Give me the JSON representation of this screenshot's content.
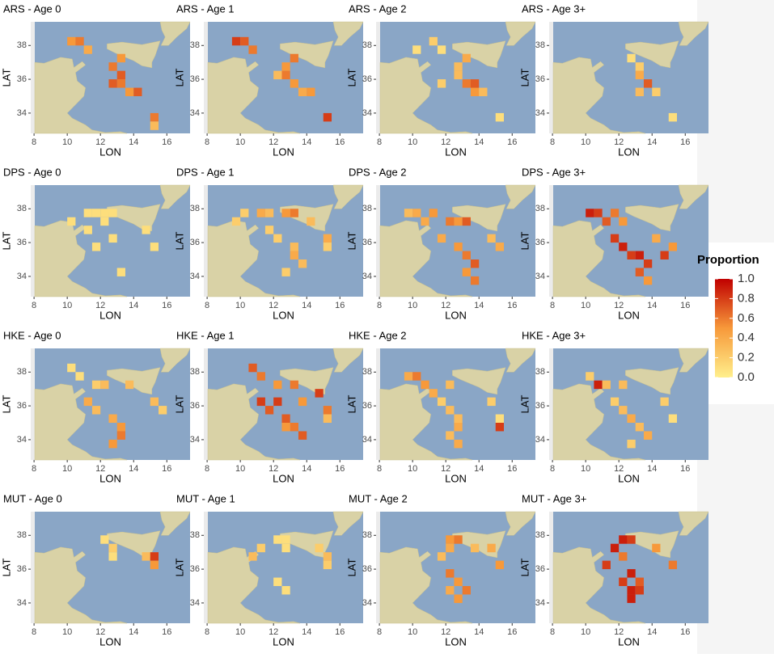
{
  "chart_data": [
    {
      "type": "heatmap",
      "title": "ARS - Age 0",
      "xlabel": "LON",
      "ylabel": "LAT",
      "xlim": [
        7.8,
        17.4
      ],
      "ylim": [
        32.8,
        39.4
      ],
      "xticks": [
        8,
        10,
        12,
        14,
        16
      ],
      "yticks": [
        34,
        36,
        38
      ],
      "x": [
        10.25,
        10.75,
        11.25,
        13.25,
        12.75,
        13.25,
        13.25,
        13.75,
        14.25,
        15.25,
        15.25,
        12.75
      ],
      "y": [
        38.25,
        38.25,
        37.75,
        37.25,
        36.75,
        36.25,
        35.75,
        35.25,
        35.25,
        33.75,
        33.25,
        35.75
      ],
      "values": [
        0.5,
        0.6,
        0.4,
        0.5,
        0.6,
        0.7,
        0.6,
        0.5,
        0.7,
        0.6,
        0.3,
        0.7
      ]
    },
    {
      "type": "heatmap",
      "title": "ARS - Age 1",
      "xlabel": "LON",
      "ylabel": "LAT",
      "xlim": [
        7.8,
        17.4
      ],
      "ylim": [
        32.8,
        39.4
      ],
      "xticks": [
        8,
        10,
        12,
        14,
        16
      ],
      "yticks": [
        34,
        36,
        38
      ],
      "x": [
        9.75,
        10.25,
        10.75,
        13.25,
        12.75,
        12.75,
        13.25,
        13.75,
        14.25,
        15.25,
        12.25
      ],
      "y": [
        38.25,
        38.25,
        37.75,
        37.25,
        36.75,
        36.25,
        35.75,
        35.25,
        35.25,
        33.75,
        36.25
      ],
      "values": [
        0.8,
        0.7,
        0.6,
        0.6,
        0.5,
        0.6,
        0.5,
        0.4,
        0.5,
        0.8,
        0.3
      ]
    },
    {
      "type": "heatmap",
      "title": "ARS - Age 2",
      "xlabel": "LON",
      "ylabel": "LAT",
      "xlim": [
        7.8,
        17.4
      ],
      "ylim": [
        32.8,
        39.4
      ],
      "xticks": [
        8,
        10,
        12,
        14,
        16
      ],
      "yticks": [
        34,
        36,
        38
      ],
      "x": [
        10.25,
        11.25,
        11.75,
        13.25,
        12.75,
        12.75,
        13.25,
        13.75,
        13.75,
        14.25,
        15.25,
        11.75
      ],
      "y": [
        37.75,
        38.25,
        37.75,
        37.25,
        36.75,
        36.25,
        35.75,
        35.25,
        35.75,
        35.25,
        33.75,
        35.75
      ],
      "values": [
        0.1,
        0.2,
        0.1,
        0.4,
        0.3,
        0.3,
        0.6,
        0.5,
        0.7,
        0.3,
        0.1,
        0.2
      ]
    },
    {
      "type": "heatmap",
      "title": "ARS - Age 3+",
      "xlabel": "LON",
      "ylabel": "LAT",
      "xlim": [
        7.8,
        17.4
      ],
      "ylim": [
        32.8,
        39.4
      ],
      "xticks": [
        8,
        10,
        12,
        14,
        16
      ],
      "yticks": [
        34,
        36,
        38
      ],
      "x": [
        12.75,
        13.25,
        13.25,
        13.75,
        13.25,
        14.25,
        15.25
      ],
      "y": [
        37.25,
        36.75,
        36.25,
        35.75,
        35.25,
        35.25,
        33.75
      ],
      "values": [
        0.1,
        0.2,
        0.4,
        0.7,
        0.3,
        0.2,
        0.1
      ]
    },
    {
      "type": "heatmap",
      "title": "DPS - Age 0",
      "xlabel": "LON",
      "ylabel": "LAT",
      "xlim": [
        7.8,
        17.4
      ],
      "ylim": [
        32.8,
        39.4
      ],
      "xticks": [
        8,
        10,
        12,
        14,
        16
      ],
      "yticks": [
        34,
        36,
        38
      ],
      "x": [
        11.25,
        11.75,
        12.25,
        12.75,
        10.25,
        11.25,
        12.75,
        14.75,
        15.25,
        13.25,
        11.75,
        12.25
      ],
      "y": [
        37.75,
        37.75,
        37.75,
        37.75,
        37.25,
        36.75,
        36.25,
        36.75,
        35.75,
        34.25,
        35.75,
        37.25
      ],
      "values": [
        0.1,
        0.1,
        0.1,
        0.1,
        0.1,
        0.1,
        0.1,
        0.1,
        0.1,
        0.1,
        0.1,
        0.1
      ]
    },
    {
      "type": "heatmap",
      "title": "DPS - Age 1",
      "xlabel": "LON",
      "ylabel": "LAT",
      "xlim": [
        7.8,
        17.4
      ],
      "ylim": [
        32.8,
        39.4
      ],
      "xticks": [
        8,
        10,
        12,
        14,
        16
      ],
      "yticks": [
        34,
        36,
        38
      ],
      "x": [
        10.25,
        11.25,
        11.75,
        12.75,
        13.25,
        14.25,
        9.75,
        12.25,
        13.25,
        13.25,
        13.75,
        12.75,
        15.25,
        15.25,
        11.75
      ],
      "y": [
        37.75,
        37.75,
        37.75,
        37.75,
        37.75,
        37.25,
        37.25,
        36.25,
        35.75,
        35.25,
        34.75,
        34.25,
        36.25,
        35.75,
        36.75
      ],
      "values": [
        0.2,
        0.4,
        0.3,
        0.5,
        0.6,
        0.3,
        0.2,
        0.2,
        0.3,
        0.4,
        0.3,
        0.2,
        0.4,
        0.2,
        0.2
      ]
    },
    {
      "type": "heatmap",
      "title": "DPS - Age 2",
      "xlabel": "LON",
      "ylabel": "LAT",
      "xlim": [
        7.8,
        17.4
      ],
      "ylim": [
        32.8,
        39.4
      ],
      "xticks": [
        8,
        10,
        12,
        14,
        16
      ],
      "yticks": [
        34,
        36,
        38
      ],
      "x": [
        9.75,
        10.25,
        10.75,
        11.25,
        12.25,
        12.75,
        13.25,
        11.75,
        12.75,
        13.25,
        13.75,
        13.25,
        13.75,
        14.75,
        15.25
      ],
      "y": [
        37.75,
        37.75,
        37.25,
        37.75,
        37.25,
        37.25,
        37.25,
        36.25,
        35.75,
        35.25,
        34.75,
        34.25,
        33.75,
        36.25,
        35.75
      ],
      "values": [
        0.3,
        0.4,
        0.4,
        0.5,
        0.6,
        0.5,
        0.7,
        0.4,
        0.5,
        0.6,
        0.7,
        0.5,
        0.6,
        0.3,
        0.4
      ]
    },
    {
      "type": "heatmap",
      "title": "DPS - Age 3+",
      "xlabel": "LON",
      "ylabel": "LAT",
      "xlim": [
        7.8,
        17.4
      ],
      "ylim": [
        32.8,
        39.4
      ],
      "xticks": [
        8,
        10,
        12,
        14,
        16
      ],
      "yticks": [
        34,
        36,
        38
      ],
      "x": [
        10.25,
        10.75,
        11.25,
        11.75,
        12.25,
        11.75,
        12.25,
        12.75,
        13.25,
        13.75,
        13.25,
        13.75,
        14.75,
        15.25,
        14.25
      ],
      "y": [
        37.75,
        37.75,
        37.25,
        37.75,
        37.25,
        36.25,
        35.75,
        35.25,
        35.25,
        34.75,
        34.25,
        33.75,
        35.25,
        35.75,
        36.25
      ],
      "values": [
        0.9,
        0.8,
        0.7,
        0.6,
        0.5,
        0.8,
        0.9,
        0.8,
        0.9,
        0.8,
        0.7,
        0.5,
        0.8,
        0.5,
        0.4
      ]
    },
    {
      "type": "heatmap",
      "title": "HKE - Age 0",
      "xlabel": "LON",
      "ylabel": "LAT",
      "xlim": [
        7.8,
        17.4
      ],
      "ylim": [
        32.8,
        39.4
      ],
      "xticks": [
        8,
        10,
        12,
        14,
        16
      ],
      "yticks": [
        34,
        36,
        38
      ],
      "x": [
        10.25,
        10.75,
        11.75,
        12.25,
        11.25,
        11.75,
        12.75,
        13.25,
        13.25,
        12.75,
        15.25,
        15.75,
        13.75
      ],
      "y": [
        38.25,
        37.75,
        37.25,
        37.25,
        36.25,
        35.75,
        35.25,
        34.75,
        34.25,
        33.75,
        36.25,
        35.75,
        37.25
      ],
      "values": [
        0.1,
        0.1,
        0.2,
        0.3,
        0.4,
        0.3,
        0.4,
        0.5,
        0.6,
        0.5,
        0.3,
        0.2,
        0.3
      ]
    },
    {
      "type": "heatmap",
      "title": "HKE - Age 1",
      "xlabel": "LON",
      "ylabel": "LAT",
      "xlim": [
        7.8,
        17.4
      ],
      "ylim": [
        32.8,
        39.4
      ],
      "xticks": [
        8,
        10,
        12,
        14,
        16
      ],
      "yticks": [
        34,
        36,
        38
      ],
      "x": [
        10.75,
        11.25,
        12.25,
        13.25,
        11.25,
        11.75,
        12.25,
        12.75,
        13.25,
        13.75,
        12.75,
        14.75,
        15.25,
        15.25,
        13.75
      ],
      "y": [
        38.25,
        37.75,
        37.25,
        37.25,
        36.25,
        35.75,
        36.25,
        35.25,
        34.75,
        34.25,
        34.75,
        36.75,
        35.75,
        35.25,
        36.25
      ],
      "values": [
        0.7,
        0.6,
        0.5,
        0.6,
        0.8,
        0.7,
        0.8,
        0.7,
        0.6,
        0.7,
        0.5,
        0.8,
        0.6,
        0.3,
        0.5
      ]
    },
    {
      "type": "heatmap",
      "title": "HKE - Age 2",
      "xlabel": "LON",
      "ylabel": "LAT",
      "xlim": [
        7.8,
        17.4
      ],
      "ylim": [
        32.8,
        39.4
      ],
      "xticks": [
        8,
        10,
        12,
        14,
        16
      ],
      "yticks": [
        34,
        36,
        38
      ],
      "x": [
        9.75,
        10.25,
        10.75,
        12.25,
        11.75,
        12.25,
        12.75,
        12.75,
        12.25,
        12.75,
        14.75,
        15.25,
        15.25,
        11.25
      ],
      "y": [
        37.75,
        37.75,
        37.25,
        37.25,
        36.25,
        35.75,
        35.25,
        34.75,
        34.25,
        33.75,
        36.25,
        35.25,
        34.75,
        36.75
      ],
      "values": [
        0.4,
        0.6,
        0.5,
        0.3,
        0.2,
        0.3,
        0.3,
        0.4,
        0.3,
        0.4,
        0.2,
        0.1,
        0.8,
        0.4
      ]
    },
    {
      "type": "heatmap",
      "title": "HKE - Age 3+",
      "xlabel": "LON",
      "ylabel": "LAT",
      "xlim": [
        7.8,
        17.4
      ],
      "ylim": [
        32.8,
        39.4
      ],
      "xticks": [
        8,
        10,
        12,
        14,
        16
      ],
      "yticks": [
        34,
        36,
        38
      ],
      "x": [
        10.25,
        10.75,
        11.25,
        12.25,
        11.75,
        12.25,
        12.75,
        13.25,
        13.75,
        12.75,
        14.75,
        15.25
      ],
      "y": [
        37.75,
        37.25,
        37.25,
        37.25,
        36.25,
        35.75,
        35.25,
        34.75,
        34.25,
        33.75,
        36.25,
        35.25
      ],
      "values": [
        0.2,
        0.9,
        0.3,
        0.3,
        0.2,
        0.3,
        0.4,
        0.3,
        0.4,
        0.2,
        0.2,
        0.1
      ]
    },
    {
      "type": "heatmap",
      "title": "MUT - Age 0",
      "xlabel": "LON",
      "ylabel": "LAT",
      "xlim": [
        7.8,
        17.4
      ],
      "ylim": [
        32.8,
        39.4
      ],
      "xticks": [
        8,
        10,
        12,
        14,
        16
      ],
      "yticks": [
        34,
        36,
        38
      ],
      "x": [
        12.25,
        12.75,
        12.75,
        14.75,
        15.25,
        15.25
      ],
      "y": [
        37.75,
        37.25,
        36.75,
        36.75,
        36.75,
        36.25
      ],
      "values": [
        0.1,
        0.2,
        0.1,
        0.3,
        0.8,
        0.5
      ]
    },
    {
      "type": "heatmap",
      "title": "MUT - Age 1",
      "xlabel": "LON",
      "ylabel": "LAT",
      "xlim": [
        7.8,
        17.4
      ],
      "ylim": [
        32.8,
        39.4
      ],
      "xticks": [
        8,
        10,
        12,
        14,
        16
      ],
      "yticks": [
        34,
        36,
        38
      ],
      "x": [
        12.25,
        12.75,
        12.75,
        11.25,
        10.75,
        12.25,
        12.75,
        14.75,
        15.25,
        15.25
      ],
      "y": [
        37.75,
        37.75,
        37.25,
        37.25,
        36.75,
        35.25,
        34.75,
        37.25,
        36.75,
        36.25
      ],
      "values": [
        0.1,
        0.1,
        0.1,
        0.2,
        0.3,
        0.1,
        0.1,
        0.2,
        0.3,
        0.2
      ]
    },
    {
      "type": "heatmap",
      "title": "MUT - Age 2",
      "xlabel": "LON",
      "ylabel": "LAT",
      "xlim": [
        7.8,
        17.4
      ],
      "ylim": [
        32.8,
        39.4
      ],
      "xticks": [
        8,
        10,
        12,
        14,
        16
      ],
      "yticks": [
        34,
        36,
        38
      ],
      "x": [
        12.25,
        12.75,
        12.25,
        11.75,
        12.25,
        12.75,
        12.25,
        13.25,
        12.75,
        14.75,
        15.25,
        13.75
      ],
      "y": [
        37.75,
        37.75,
        37.25,
        36.75,
        35.75,
        35.25,
        34.75,
        34.75,
        34.25,
        37.25,
        36.25,
        37.25
      ],
      "values": [
        0.5,
        0.6,
        0.4,
        0.3,
        0.6,
        0.5,
        0.4,
        0.6,
        0.5,
        0.4,
        0.5,
        0.3
      ]
    },
    {
      "type": "heatmap",
      "title": "MUT - Age 3+",
      "xlabel": "LON",
      "ylabel": "LAT",
      "xlim": [
        7.8,
        17.4
      ],
      "ylim": [
        32.8,
        39.4
      ],
      "xticks": [
        8,
        10,
        12,
        14,
        16
      ],
      "yticks": [
        34,
        36,
        38
      ],
      "x": [
        12.25,
        12.75,
        11.75,
        12.25,
        12.75,
        12.25,
        12.75,
        13.25,
        12.75,
        13.25,
        14.25,
        15.25,
        11.25
      ],
      "y": [
        37.75,
        37.75,
        37.25,
        36.75,
        35.75,
        35.25,
        34.75,
        34.75,
        34.25,
        35.25,
        37.25,
        36.25,
        36.25
      ],
      "values": [
        0.9,
        0.8,
        0.9,
        0.6,
        0.9,
        0.8,
        0.9,
        0.8,
        0.9,
        0.7,
        0.5,
        0.6,
        0.8
      ]
    }
  ],
  "colorbar": {
    "title": "Proportion",
    "lim": [
      0,
      1
    ],
    "colors": [
      "#ffef8c",
      "#f7993a",
      "#c00000"
    ],
    "ticks": [
      {
        "value": 0,
        "label": "0.0"
      },
      0.2,
      0.4,
      0.6,
      0.8,
      {
        "value": 1,
        "label": "1.0"
      }
    ]
  }
}
